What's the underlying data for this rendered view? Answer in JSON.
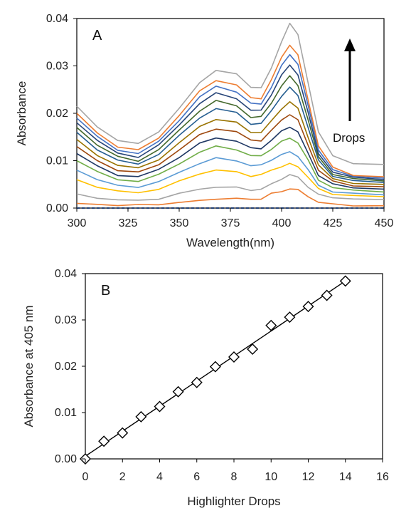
{
  "chart_data": [
    {
      "type": "line",
      "panel_label": "A",
      "xlabel": "Wavelength(nm)",
      "ylabel": "Absorbance",
      "xlim": [
        300,
        450
      ],
      "ylim": [
        0,
        0.04
      ],
      "xticks": [
        300,
        325,
        350,
        375,
        400,
        425,
        450
      ],
      "yticks": [
        0.0,
        0.01,
        0.02,
        0.03,
        0.04
      ],
      "xtick_labels": [
        "300",
        "325",
        "350",
        "375",
        "400",
        "425",
        "450"
      ],
      "ytick_labels": [
        "0.00",
        "0.01",
        "0.02",
        "0.03",
        "0.04"
      ],
      "grid": false,
      "annotation": "Drops",
      "x": [
        300,
        310,
        320,
        330,
        340,
        350,
        360,
        368,
        378,
        385,
        390,
        395,
        400,
        404,
        408,
        413,
        418,
        425,
        435,
        450
      ],
      "series": [
        {
          "color": "#264478",
          "values": [
            0.0,
            0.0,
            0.0,
            0.0,
            0.0,
            0.0,
            0.0,
            0.0,
            0.0,
            0.0,
            0.0,
            0.0,
            0.0,
            0.0,
            0.0,
            0.0,
            0.0,
            0.0,
            0.0,
            0.0
          ]
        },
        {
          "color": "#ED7D31",
          "values": [
            0.001,
            0.0008,
            0.0006,
            0.0006,
            0.0008,
            0.0012,
            0.0015,
            0.002,
            0.002,
            0.0018,
            0.002,
            0.003,
            0.0035,
            0.0041,
            0.0038,
            0.0025,
            0.0012,
            0.0008,
            0.0006,
            0.0005
          ]
        },
        {
          "color": "#A5A5A5",
          "values": [
            0.003,
            0.0022,
            0.0017,
            0.0016,
            0.002,
            0.003,
            0.004,
            0.0045,
            0.0043,
            0.0038,
            0.004,
            0.005,
            0.0062,
            0.007,
            0.0065,
            0.0045,
            0.0028,
            0.0022,
            0.002,
            0.0018
          ]
        },
        {
          "color": "#FFC000",
          "values": [
            0.006,
            0.0045,
            0.0035,
            0.0033,
            0.004,
            0.0056,
            0.0073,
            0.008,
            0.0076,
            0.0068,
            0.007,
            0.008,
            0.0088,
            0.0093,
            0.0088,
            0.0065,
            0.004,
            0.003,
            0.0026,
            0.0024
          ]
        },
        {
          "color": "#5B9BD5",
          "values": [
            0.008,
            0.006,
            0.0047,
            0.0045,
            0.0055,
            0.0075,
            0.0095,
            0.0105,
            0.01,
            0.009,
            0.009,
            0.0102,
            0.0113,
            0.0118,
            0.011,
            0.008,
            0.0048,
            0.0035,
            0.003,
            0.0028
          ]
        },
        {
          "color": "#70AD47",
          "values": [
            0.01,
            0.0076,
            0.006,
            0.0057,
            0.007,
            0.0094,
            0.0118,
            0.013,
            0.0124,
            0.011,
            0.011,
            0.0125,
            0.014,
            0.0148,
            0.0138,
            0.01,
            0.006,
            0.0043,
            0.0037,
            0.0034
          ]
        },
        {
          "color": "#1F3864",
          "values": [
            0.0115,
            0.0088,
            0.007,
            0.0066,
            0.0081,
            0.0108,
            0.0136,
            0.0148,
            0.0142,
            0.0126,
            0.0126,
            0.0143,
            0.0162,
            0.0172,
            0.016,
            0.0115,
            0.007,
            0.005,
            0.0043,
            0.004
          ]
        },
        {
          "color": "#9E480E",
          "values": [
            0.013,
            0.01,
            0.008,
            0.0075,
            0.0092,
            0.0123,
            0.0154,
            0.0168,
            0.0161,
            0.0143,
            0.0143,
            0.0163,
            0.0186,
            0.0198,
            0.0185,
            0.0133,
            0.008,
            0.0056,
            0.0048,
            0.0045
          ]
        },
        {
          "color": "#997300",
          "values": [
            0.0145,
            0.0112,
            0.009,
            0.0084,
            0.0103,
            0.0137,
            0.0172,
            0.0188,
            0.018,
            0.016,
            0.016,
            0.0183,
            0.021,
            0.0224,
            0.021,
            0.015,
            0.009,
            0.0062,
            0.0053,
            0.005
          ]
        },
        {
          "color": "#255E91",
          "values": [
            0.016,
            0.0124,
            0.01,
            0.0093,
            0.0114,
            0.0152,
            0.0191,
            0.021,
            0.0201,
            0.0178,
            0.0178,
            0.0205,
            0.0237,
            0.0254,
            0.0238,
            0.017,
            0.01,
            0.0068,
            0.0058,
            0.0054
          ]
        },
        {
          "color": "#43682B",
          "values": [
            0.017,
            0.0133,
            0.0108,
            0.01,
            0.0123,
            0.0164,
            0.0206,
            0.0226,
            0.0216,
            0.0192,
            0.0192,
            0.0222,
            0.0258,
            0.0278,
            0.026,
            0.0185,
            0.0108,
            0.0072,
            0.0061,
            0.0057
          ]
        },
        {
          "color": "#264478",
          "values": [
            0.018,
            0.0142,
            0.0116,
            0.0108,
            0.0132,
            0.0176,
            0.0221,
            0.0242,
            0.0232,
            0.0206,
            0.0206,
            0.024,
            0.028,
            0.0302,
            0.0282,
            0.02,
            0.0116,
            0.0076,
            0.0064,
            0.006
          ]
        },
        {
          "color": "#4472C4",
          "values": [
            0.019,
            0.015,
            0.0123,
            0.0115,
            0.014,
            0.0186,
            0.0234,
            0.0257,
            0.0246,
            0.022,
            0.022,
            0.0255,
            0.03,
            0.0325,
            0.0303,
            0.0215,
            0.0124,
            0.008,
            0.0067,
            0.0063
          ]
        },
        {
          "color": "#ED7D31",
          "values": [
            0.02,
            0.0158,
            0.013,
            0.0122,
            0.0148,
            0.0196,
            0.0246,
            0.027,
            0.026,
            0.0232,
            0.0232,
            0.027,
            0.0318,
            0.0345,
            0.0322,
            0.0228,
            0.0132,
            0.0085,
            0.007,
            0.0066
          ]
        },
        {
          "color": "#A5A5A5",
          "values": [
            0.0215,
            0.0172,
            0.0143,
            0.0135,
            0.0162,
            0.021,
            0.0264,
            0.0292,
            0.0282,
            0.0255,
            0.0255,
            0.0294,
            0.0352,
            0.039,
            0.0365,
            0.0265,
            0.016,
            0.011,
            0.0095,
            0.0092
          ]
        }
      ]
    },
    {
      "type": "scatter",
      "panel_label": "B",
      "xlabel": "Highlighter Drops",
      "ylabel": "Absorbance at 405 nm",
      "xlim": [
        0,
        16
      ],
      "ylim": [
        0,
        0.04
      ],
      "xticks": [
        0,
        2,
        4,
        6,
        8,
        10,
        12,
        14,
        16
      ],
      "yticks": [
        0.0,
        0.01,
        0.02,
        0.03,
        0.04
      ],
      "xtick_labels": [
        "0",
        "2",
        "4",
        "6",
        "8",
        "10",
        "12",
        "14",
        "16"
      ],
      "ytick_labels": [
        "0.00",
        "0.01",
        "0.02",
        "0.03",
        "0.04"
      ],
      "grid": false,
      "marker": "diamond-open",
      "trendline": true,
      "trendline_range": [
        0,
        14
      ],
      "x": [
        0,
        1,
        2,
        3,
        4,
        5,
        6,
        7,
        8,
        9,
        10,
        11,
        12,
        13,
        14
      ],
      "y": [
        0.0,
        0.0038,
        0.0056,
        0.0091,
        0.0113,
        0.0145,
        0.0165,
        0.0199,
        0.022,
        0.0237,
        0.0288,
        0.0306,
        0.0329,
        0.0353,
        0.0384
      ]
    }
  ]
}
